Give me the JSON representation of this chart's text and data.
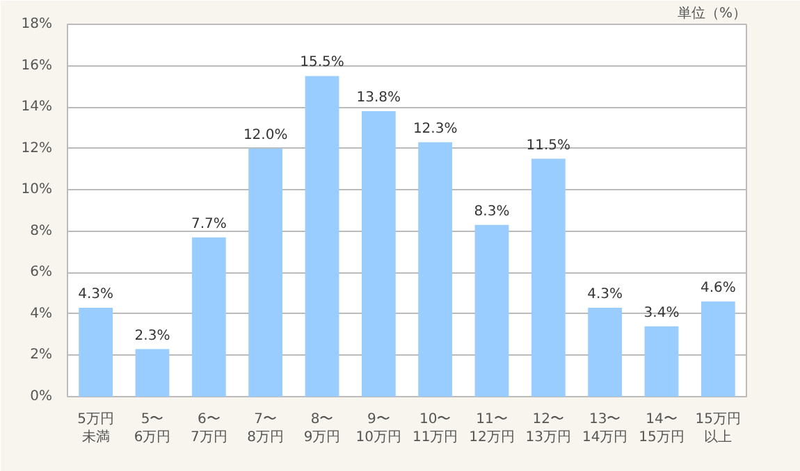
{
  "chart_data": {
    "type": "bar",
    "ylabel": "単位（%）",
    "categories": [
      "5万円未満",
      "5〜6万円",
      "6〜7万円",
      "7〜8万円",
      "8〜9万円",
      "9〜10万円",
      "10〜11万円",
      "11〜12万円",
      "12〜13万円",
      "13〜14万円",
      "14〜15万円",
      "15万円以上"
    ],
    "values": [
      4.3,
      2.3,
      7.7,
      12.0,
      15.5,
      13.8,
      12.3,
      8.3,
      11.5,
      4.3,
      3.4,
      4.6
    ],
    "value_labels": [
      "4.3%",
      "2.3%",
      "7.7%",
      "12.0%",
      "15.5%",
      "13.8%",
      "12.3%",
      "8.3%",
      "11.5%",
      "4.3%",
      "3.4%",
      "4.6%"
    ],
    "color": "#99ccff",
    "ylim": [
      0,
      18
    ],
    "yticks": [
      {
        "value": 0,
        "label": "0%"
      },
      {
        "value": 2,
        "label": "2%"
      },
      {
        "value": 4,
        "label": "4%"
      },
      {
        "value": 6,
        "label": "6%"
      },
      {
        "value": 8,
        "label": "8%"
      },
      {
        "value": 10,
        "label": "10%"
      },
      {
        "value": 12,
        "label": "12%"
      },
      {
        "value": 14,
        "label": "14%"
      },
      {
        "value": 16,
        "label": "16%"
      },
      {
        "value": 18,
        "label": "18%"
      }
    ],
    "grid": "y"
  }
}
